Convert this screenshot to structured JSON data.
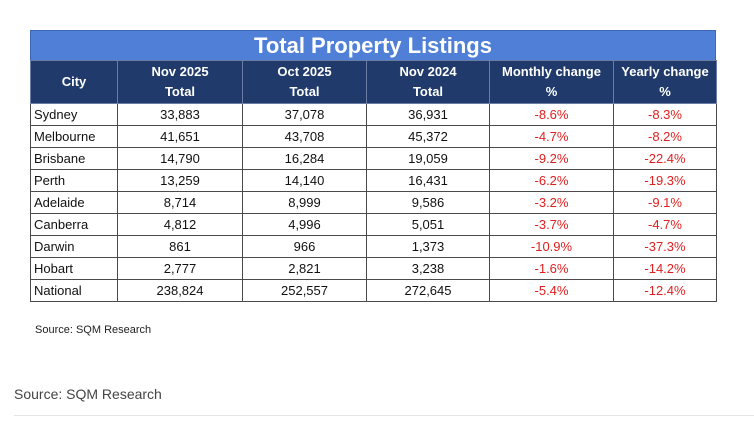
{
  "table": {
    "title": "Total Property Listings",
    "headers": [
      [
        "City",
        ""
      ],
      [
        "Nov 2025",
        "Total"
      ],
      [
        "Oct 2025",
        "Total"
      ],
      [
        "Nov 2024",
        "Total"
      ],
      [
        "Monthly change",
        "%"
      ],
      [
        "Yearly change",
        "%"
      ]
    ],
    "rows": [
      [
        "Sydney",
        "33,883",
        "37,078",
        "36,931",
        "-8.6%",
        "-8.3%"
      ],
      [
        "Melbourne",
        "41,651",
        "43,708",
        "45,372",
        "-4.7%",
        "-8.2%"
      ],
      [
        "Brisbane",
        "14,790",
        "16,284",
        "19,059",
        "-9.2%",
        "-22.4%"
      ],
      [
        "Perth",
        "13,259",
        "14,140",
        "16,431",
        "-6.2%",
        "-19.3%"
      ],
      [
        "Adelaide",
        "8,714",
        "8,999",
        "9,586",
        "-3.2%",
        "-9.1%"
      ],
      [
        "Canberra",
        "4,812",
        "4,996",
        "5,051",
        "-3.7%",
        "-4.7%"
      ],
      [
        "Darwin",
        "861",
        "966",
        "1,373",
        "-10.9%",
        "-37.3%"
      ],
      [
        "Hobart",
        "2,777",
        "2,821",
        "3,238",
        "-1.6%",
        "-14.2%"
      ],
      [
        "National",
        "238,824",
        "252,557",
        "272,645",
        "-5.4%",
        "-12.4%"
      ]
    ],
    "source_note": "Source: SQM Research"
  },
  "caption": {
    "text": "Source: SQM Research"
  },
  "colors": {
    "title_bg": "#4f7fd6",
    "header_bg": "#1f3a6b",
    "negative": "#e02020"
  }
}
